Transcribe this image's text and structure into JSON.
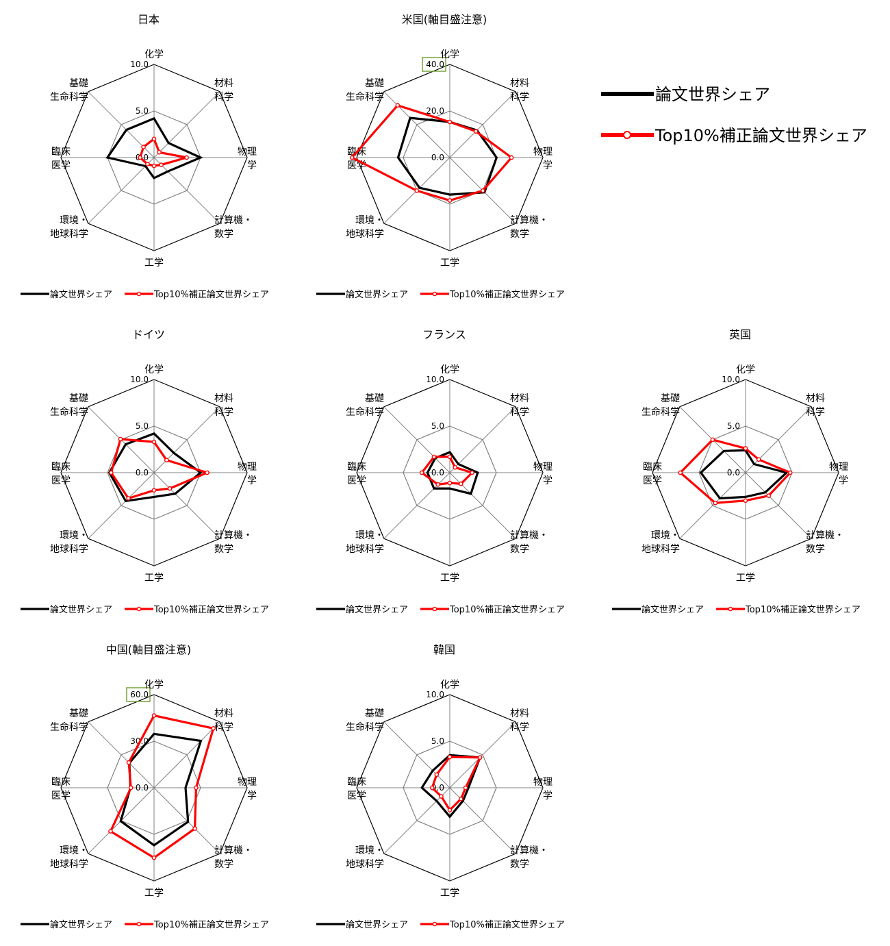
{
  "big_legend": {
    "share_label": "論文世界シェア",
    "top10_label": "Top10%補正論文世界シェア"
  },
  "colors": {
    "share": "#000000",
    "top10": "#ff0000",
    "grid": "#808080",
    "frame": "#000000",
    "highlight_box": "#77a33a"
  },
  "chart_data": [
    {
      "type": "radar",
      "title": "日本",
      "axes": [
        [
          "化学"
        ],
        [
          "材料",
          "科学"
        ],
        [
          "物理",
          "学"
        ],
        [
          "計算機・",
          "数学"
        ],
        [
          "工学"
        ],
        [
          "環境・",
          "地球科学"
        ],
        [
          "臨床",
          "医学"
        ],
        [
          "基礎",
          "生命科学"
        ]
      ],
      "ticks": [
        "0.0",
        "5.0",
        "10.0"
      ],
      "rmax": 10,
      "highlight_max_tick": false,
      "series": [
        {
          "name": "論文世界シェア",
          "values": [
            4.2,
            2.2,
            5.0,
            2.1,
            2.2,
            1.3,
            5.0,
            4.2
          ]
        },
        {
          "name": "Top10%補正論文世界シェア",
          "values": [
            2.0,
            0.8,
            3.5,
            1.1,
            0.9,
            1.0,
            1.5,
            1.6
          ]
        }
      ],
      "legend": [
        "論文世界シェア",
        "Top10%補正論文世界シェア"
      ]
    },
    {
      "type": "radar",
      "title": "米国(軸目盛注意)",
      "axes": [
        [
          "化学"
        ],
        [
          "材料",
          "科学"
        ],
        [
          "物理",
          "学"
        ],
        [
          "計算機・",
          "数学"
        ],
        [
          "工学"
        ],
        [
          "環境・",
          "地球科学"
        ],
        [
          "臨床",
          "医学"
        ],
        [
          "基礎",
          "生命科学"
        ]
      ],
      "ticks": [
        "0.0",
        "20.0",
        "40.0"
      ],
      "rmax": 40,
      "highlight_max_tick": true,
      "series": [
        {
          "name": "論文世界シェア",
          "values": [
            15.3,
            16.5,
            20.1,
            21.1,
            15.9,
            18.4,
            22.2,
            24.1
          ]
        },
        {
          "name": "Top10%補正論文世界シェア",
          "values": [
            15.3,
            15.9,
            26.5,
            20.1,
            18.4,
            20.1,
            42.0,
            31.7
          ]
        }
      ],
      "legend": [
        "論文世界シェア",
        "Top10%補正論文世界シェア"
      ]
    },
    {
      "type": "radar",
      "title": "ドイツ",
      "axes": [
        [
          "化学"
        ],
        [
          "材料",
          "科学"
        ],
        [
          "物理",
          "学"
        ],
        [
          "計算機・",
          "数学"
        ],
        [
          "工学"
        ],
        [
          "環境・",
          "地球科学"
        ],
        [
          "臨床",
          "医学"
        ],
        [
          "基礎",
          "生命科学"
        ]
      ],
      "ticks": [
        "0.0",
        "5.0",
        "10.0"
      ],
      "rmax": 10,
      "highlight_max_tick": false,
      "series": [
        {
          "name": "論文世界シェア",
          "values": [
            4.2,
            3.0,
            5.0,
            3.2,
            2.6,
            4.3,
            4.8,
            4.3
          ]
        },
        {
          "name": "Top10%補正論文世界シェア",
          "values": [
            3.3,
            1.9,
            5.7,
            2.4,
            1.9,
            3.9,
            4.6,
            5.1
          ]
        }
      ],
      "legend": [
        "論文世界シェア",
        "Top10%補正論文世界シェア"
      ]
    },
    {
      "type": "radar",
      "title": "フランス",
      "axes": [
        [
          "化学"
        ],
        [
          "材料",
          "科学"
        ],
        [
          "物理",
          "学"
        ],
        [
          "計算機・",
          "数学"
        ],
        [
          "工学"
        ],
        [
          "環境・",
          "地球科学"
        ],
        [
          "臨床",
          "医学"
        ],
        [
          "基礎",
          "生命科学"
        ]
      ],
      "ticks": [
        "0.0",
        "5.0",
        "10.0"
      ],
      "rmax": 10,
      "highlight_max_tick": false,
      "series": [
        {
          "name": "論文世界シェア",
          "values": [
            2.2,
            1.3,
            3.0,
            3.2,
            1.7,
            2.4,
            2.4,
            2.2
          ]
        },
        {
          "name": "Top10%補正論文世界シェア",
          "values": [
            1.7,
            0.8,
            2.4,
            1.7,
            1.1,
            1.8,
            3.0,
            2.4
          ]
        }
      ],
      "legend": [
        "論文世界シェア",
        "Top10%補正論文世界シェア"
      ]
    },
    {
      "type": "radar",
      "title": "英国",
      "axes": [
        [
          "化学"
        ],
        [
          "材料",
          "科学"
        ],
        [
          "物理",
          "学"
        ],
        [
          "計算機・",
          "数学"
        ],
        [
          "工学"
        ],
        [
          "環境・",
          "地球科学"
        ],
        [
          "臨床",
          "医学"
        ],
        [
          "基礎",
          "生命科学"
        ]
      ],
      "ticks": [
        "0.0",
        "5.0",
        "10.0"
      ],
      "rmax": 10,
      "highlight_max_tick": false,
      "series": [
        {
          "name": "論文世界シェア",
          "values": [
            2.4,
            1.3,
            4.4,
            3.0,
            2.6,
            3.9,
            4.8,
            3.3
          ]
        },
        {
          "name": "Top10%補正論文世界シェア",
          "values": [
            2.6,
            2.0,
            4.8,
            3.5,
            3.0,
            4.6,
            7.0,
            5.0
          ]
        }
      ],
      "legend": [
        "論文世界シェア",
        "Top10%補正論文世界シェア"
      ]
    },
    {
      "type": "radar",
      "title": "中国(軸目盛注意)",
      "axes": [
        [
          "化学"
        ],
        [
          "材料",
          "科学"
        ],
        [
          "物理",
          "学"
        ],
        [
          "計算機・",
          "数学"
        ],
        [
          "工学"
        ],
        [
          "環境・",
          "地球科学"
        ],
        [
          "臨床",
          "医学"
        ],
        [
          "基礎",
          "生命科学"
        ]
      ],
      "ticks": [
        "0.0",
        "30.0",
        "60.0"
      ],
      "rmax": 60,
      "highlight_max_tick": true,
      "series": [
        {
          "name": "論文世界シェア",
          "values": [
            34.7,
            42.7,
            20.3,
            31.0,
            37.0,
            30.4,
            15.2,
            22.5
          ]
        },
        {
          "name": "Top10%補正論文世界シェア",
          "values": [
            46.5,
            54.1,
            27.1,
            37.2,
            45.1,
            39.6,
            14.9,
            23.0
          ]
        }
      ],
      "legend": [
        "論文世界シェア",
        "Top10%補正論文世界シェア"
      ]
    },
    {
      "type": "radar",
      "title": "韓国",
      "axes": [
        [
          "化学"
        ],
        [
          "材料",
          "科学"
        ],
        [
          "物理",
          "学"
        ],
        [
          "計算機・",
          "数学"
        ],
        [
          "工学"
        ],
        [
          "環境・",
          "地球科学"
        ],
        [
          "臨床",
          "医学"
        ],
        [
          "基礎",
          "生命科学"
        ]
      ],
      "ticks": [
        "0.0",
        "5.0",
        "10.0"
      ],
      "rmax": 10,
      "highlight_max_tick": false,
      "series": [
        {
          "name": "論文世界シェア",
          "values": [
            3.5,
            4.6,
            2.0,
            2.0,
            3.1,
            2.0,
            3.0,
            2.6
          ]
        },
        {
          "name": "Top10%補正論文世界シェア",
          "values": [
            3.3,
            4.6,
            1.7,
            1.7,
            2.4,
            1.3,
            1.9,
            2.0
          ]
        }
      ],
      "legend": [
        "論文世界シェア",
        "Top10%補正論文世界シェア"
      ]
    }
  ]
}
